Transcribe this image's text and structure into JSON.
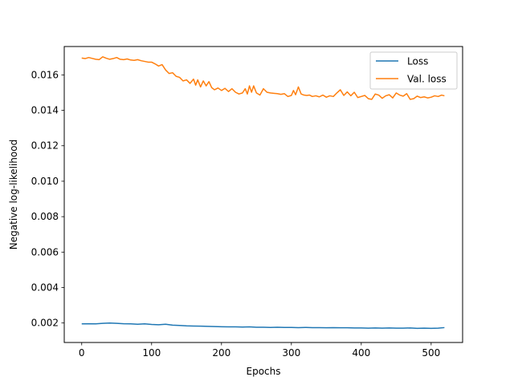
{
  "chart_data": {
    "type": "line",
    "title": "",
    "xlabel": "Epochs",
    "ylabel": "Negative log-likelihood",
    "xlim": [
      -25,
      545
    ],
    "ylim": [
      0.0009,
      0.0176
    ],
    "xticks": [
      0,
      100,
      200,
      300,
      400,
      500
    ],
    "xtick_labels": [
      "0",
      "100",
      "200",
      "300",
      "400",
      "500"
    ],
    "yticks": [
      0.002,
      0.004,
      0.006,
      0.008,
      0.01,
      0.012,
      0.014,
      0.016
    ],
    "ytick_labels": [
      "0.002",
      "0.004",
      "0.006",
      "0.008",
      "0.010",
      "0.012",
      "0.014",
      "0.016"
    ],
    "grid": false,
    "legend_position": "top-right",
    "colors": {
      "loss": "#1f77b4",
      "val_loss": "#ff7f0e"
    },
    "series": [
      {
        "name": "Loss",
        "color": "#1f77b4",
        "points": [
          [
            0,
            0.00195
          ],
          [
            10,
            0.00196
          ],
          [
            20,
            0.00195
          ],
          [
            30,
            0.00198
          ],
          [
            40,
            0.002
          ],
          [
            50,
            0.00198
          ],
          [
            60,
            0.00196
          ],
          [
            70,
            0.00195
          ],
          [
            80,
            0.00193
          ],
          [
            90,
            0.00195
          ],
          [
            100,
            0.00192
          ],
          [
            110,
            0.0019
          ],
          [
            120,
            0.00193
          ],
          [
            130,
            0.00188
          ],
          [
            140,
            0.00186
          ],
          [
            150,
            0.00184
          ],
          [
            160,
            0.00183
          ],
          [
            170,
            0.00182
          ],
          [
            180,
            0.00181
          ],
          [
            190,
            0.0018
          ],
          [
            200,
            0.00179
          ],
          [
            210,
            0.00178
          ],
          [
            220,
            0.00178
          ],
          [
            230,
            0.00177
          ],
          [
            240,
            0.00178
          ],
          [
            250,
            0.00176
          ],
          [
            260,
            0.00176
          ],
          [
            270,
            0.00175
          ],
          [
            280,
            0.00176
          ],
          [
            290,
            0.00175
          ],
          [
            300,
            0.00175
          ],
          [
            310,
            0.00174
          ],
          [
            320,
            0.00175
          ],
          [
            330,
            0.00174
          ],
          [
            340,
            0.00174
          ],
          [
            350,
            0.00173
          ],
          [
            360,
            0.00174
          ],
          [
            370,
            0.00173
          ],
          [
            380,
            0.00173
          ],
          [
            390,
            0.00172
          ],
          [
            400,
            0.00172
          ],
          [
            410,
            0.00171
          ],
          [
            420,
            0.00172
          ],
          [
            430,
            0.00171
          ],
          [
            440,
            0.00172
          ],
          [
            450,
            0.00171
          ],
          [
            460,
            0.00171
          ],
          [
            470,
            0.00172
          ],
          [
            480,
            0.0017
          ],
          [
            490,
            0.00171
          ],
          [
            500,
            0.0017
          ],
          [
            510,
            0.00171
          ],
          [
            519,
            0.00174
          ]
        ]
      },
      {
        "name": "Val. loss",
        "color": "#ff7f0e",
        "points": [
          [
            0,
            0.01695
          ],
          [
            5,
            0.01692
          ],
          [
            10,
            0.01698
          ],
          [
            15,
            0.01693
          ],
          [
            20,
            0.01688
          ],
          [
            25,
            0.01686
          ],
          [
            30,
            0.01702
          ],
          [
            35,
            0.01694
          ],
          [
            40,
            0.01688
          ],
          [
            45,
            0.01692
          ],
          [
            50,
            0.01698
          ],
          [
            55,
            0.01688
          ],
          [
            60,
            0.01686
          ],
          [
            65,
            0.0169
          ],
          [
            70,
            0.01684
          ],
          [
            75,
            0.01682
          ],
          [
            80,
            0.01686
          ],
          [
            85,
            0.0168
          ],
          [
            90,
            0.01676
          ],
          [
            95,
            0.01672
          ],
          [
            100,
            0.01672
          ],
          [
            105,
            0.01662
          ],
          [
            110,
            0.0165
          ],
          [
            115,
            0.01658
          ],
          [
            120,
            0.01628
          ],
          [
            125,
            0.01608
          ],
          [
            130,
            0.01612
          ],
          [
            135,
            0.01592
          ],
          [
            140,
            0.01586
          ],
          [
            145,
            0.01566
          ],
          [
            150,
            0.01572
          ],
          [
            155,
            0.01552
          ],
          [
            160,
            0.01576
          ],
          [
            163,
            0.01542
          ],
          [
            166,
            0.01572
          ],
          [
            170,
            0.01532
          ],
          [
            174,
            0.01566
          ],
          [
            178,
            0.01538
          ],
          [
            182,
            0.01562
          ],
          [
            186,
            0.01528
          ],
          [
            190,
            0.01516
          ],
          [
            195,
            0.01526
          ],
          [
            200,
            0.01512
          ],
          [
            205,
            0.01524
          ],
          [
            210,
            0.01506
          ],
          [
            215,
            0.01522
          ],
          [
            220,
            0.01502
          ],
          [
            225,
            0.01492
          ],
          [
            230,
            0.01498
          ],
          [
            234,
            0.01522
          ],
          [
            237,
            0.01492
          ],
          [
            240,
            0.01538
          ],
          [
            243,
            0.01502
          ],
          [
            246,
            0.01538
          ],
          [
            250,
            0.01498
          ],
          [
            255,
            0.01486
          ],
          [
            260,
            0.01522
          ],
          [
            265,
            0.01502
          ],
          [
            270,
            0.01498
          ],
          [
            275,
            0.01496
          ],
          [
            280,
            0.01494
          ],
          [
            285,
            0.0149
          ],
          [
            290,
            0.01494
          ],
          [
            295,
            0.01478
          ],
          [
            300,
            0.01484
          ],
          [
            303,
            0.01512
          ],
          [
            306,
            0.01488
          ],
          [
            310,
            0.01532
          ],
          [
            314,
            0.01492
          ],
          [
            318,
            0.01486
          ],
          [
            322,
            0.01484
          ],
          [
            326,
            0.01486
          ],
          [
            330,
            0.01478
          ],
          [
            335,
            0.01482
          ],
          [
            340,
            0.01476
          ],
          [
            345,
            0.01486
          ],
          [
            350,
            0.01474
          ],
          [
            355,
            0.01482
          ],
          [
            360,
            0.01478
          ],
          [
            365,
            0.01498
          ],
          [
            370,
            0.01516
          ],
          [
            375,
            0.01484
          ],
          [
            380,
            0.01504
          ],
          [
            385,
            0.01482
          ],
          [
            390,
            0.01502
          ],
          [
            395,
            0.01472
          ],
          [
            400,
            0.01478
          ],
          [
            405,
            0.01484
          ],
          [
            410,
            0.01466
          ],
          [
            415,
            0.01462
          ],
          [
            420,
            0.01492
          ],
          [
            425,
            0.01486
          ],
          [
            430,
            0.01468
          ],
          [
            435,
            0.01482
          ],
          [
            440,
            0.01488
          ],
          [
            445,
            0.0147
          ],
          [
            450,
            0.01498
          ],
          [
            455,
            0.01486
          ],
          [
            460,
            0.0148
          ],
          [
            465,
            0.01494
          ],
          [
            470,
            0.01462
          ],
          [
            475,
            0.01466
          ],
          [
            480,
            0.0148
          ],
          [
            485,
            0.01472
          ],
          [
            490,
            0.01476
          ],
          [
            495,
            0.0147
          ],
          [
            500,
            0.01474
          ],
          [
            505,
            0.01482
          ],
          [
            510,
            0.01478
          ],
          [
            515,
            0.01486
          ],
          [
            519,
            0.01482
          ]
        ]
      }
    ]
  }
}
